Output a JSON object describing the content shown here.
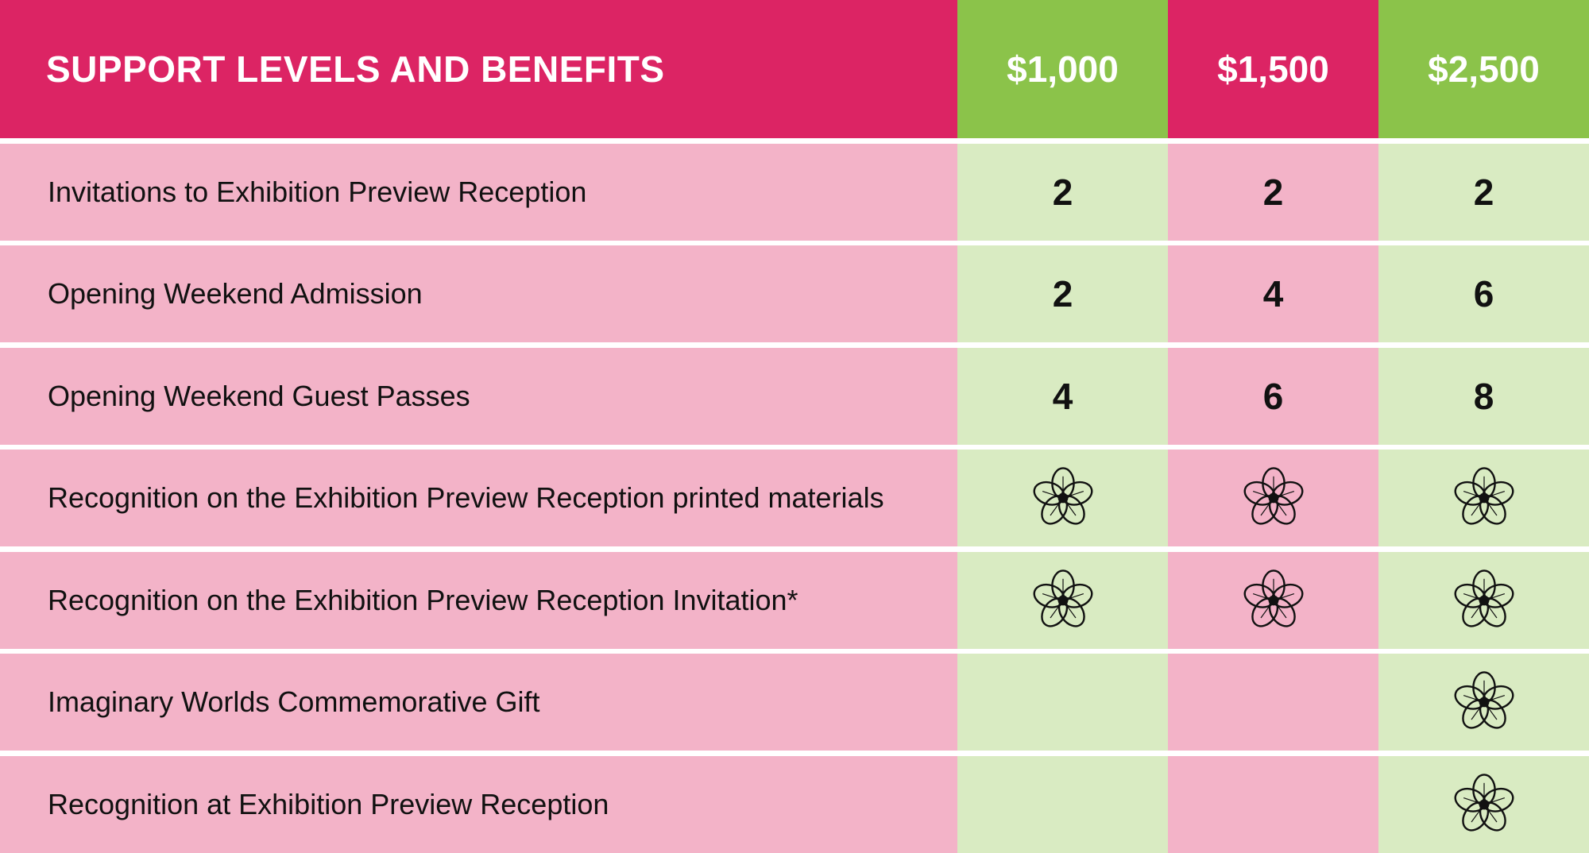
{
  "table": {
    "title": "SUPPORT LEVELS AND BENEFITS",
    "levels": [
      "$1,000",
      "$1,500",
      "$2,500"
    ],
    "rows": [
      {
        "label": "Invitations to Exhibition Preview Reception",
        "values": [
          "2",
          "2",
          "2"
        ]
      },
      {
        "label": "Opening Weekend Admission",
        "values": [
          "2",
          "4",
          "6"
        ]
      },
      {
        "label": "Opening Weekend Guest Passes",
        "values": [
          "4",
          "6",
          "8"
        ]
      },
      {
        "label": "Recognition on the Exhibition Preview Reception printed materials",
        "values": [
          "flower-icon",
          "flower-icon",
          "flower-icon"
        ]
      },
      {
        "label": "Recognition on the Exhibition Preview Reception Invitation*",
        "values": [
          "flower-icon",
          "flower-icon",
          "flower-icon"
        ]
      },
      {
        "label": "Imaginary Worlds Commemorative Gift",
        "values": [
          "",
          "",
          "flower-icon"
        ]
      },
      {
        "label": "Recognition at Exhibition Preview Reception",
        "values": [
          "",
          "",
          "flower-icon"
        ]
      }
    ]
  },
  "colors": {
    "header_pink": "#dc2464",
    "header_green": "#8bc34a",
    "row_pink": "#f3b3c8",
    "row_green": "#d9ebc2"
  }
}
